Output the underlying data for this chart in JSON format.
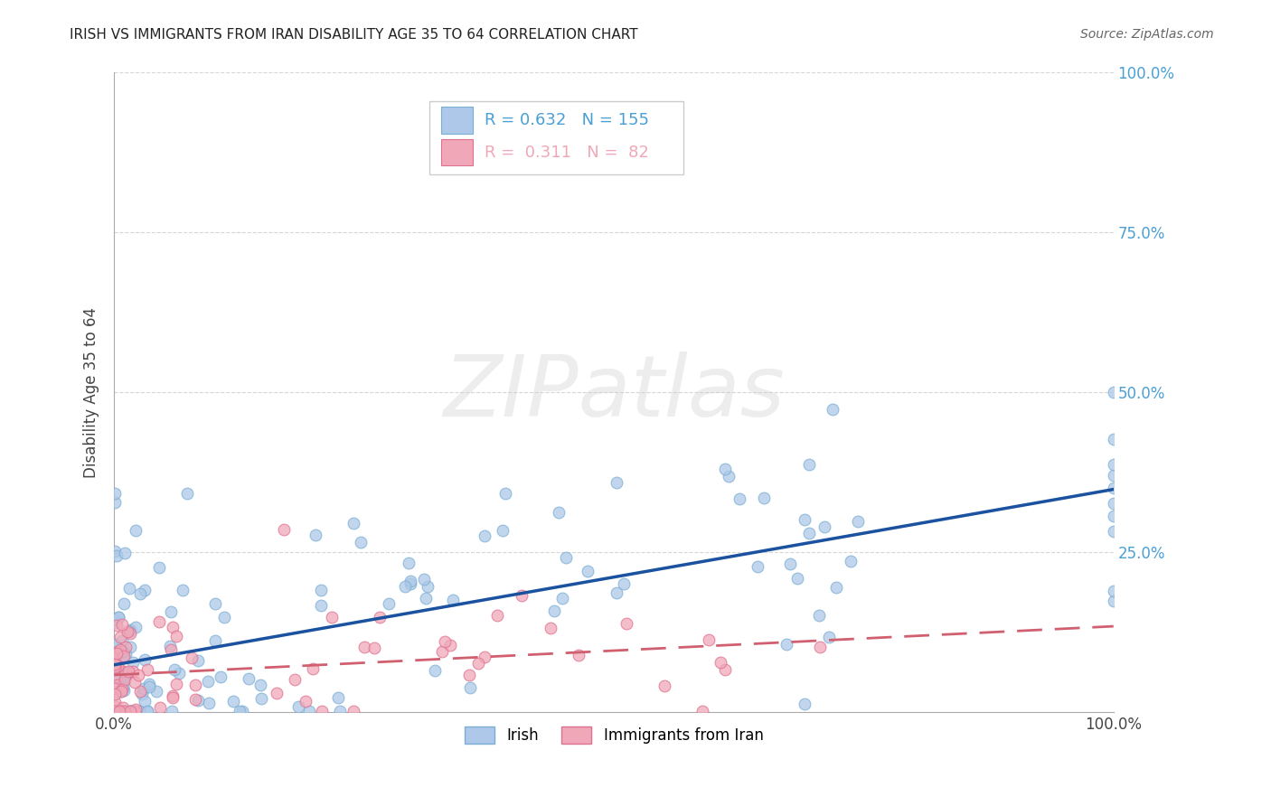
{
  "title": "IRISH VS IMMIGRANTS FROM IRAN DISABILITY AGE 35 TO 64 CORRELATION CHART",
  "source": "Source: ZipAtlas.com",
  "ylabel": "Disability Age 35 to 64",
  "irish_color": "#adc8e8",
  "irish_edge_color": "#7aaed4",
  "iran_color": "#f0a8b8",
  "iran_edge_color": "#e07090",
  "irish_line_color": "#1a52a0",
  "iran_line_color": "#d06070",
  "irish_R": 0.632,
  "irish_N": 155,
  "iran_R": 0.311,
  "iran_N": 82,
  "legend_irish_label": "Irish",
  "legend_iran_label": "Immigrants from Iran",
  "watermark": "ZIPatlas",
  "background_color": "#ffffff",
  "ytick_color": "#4a9fd4",
  "grid_color": "#cccccc",
  "title_color": "#222222",
  "source_color": "#666666",
  "axis_color": "#aaaaaa"
}
